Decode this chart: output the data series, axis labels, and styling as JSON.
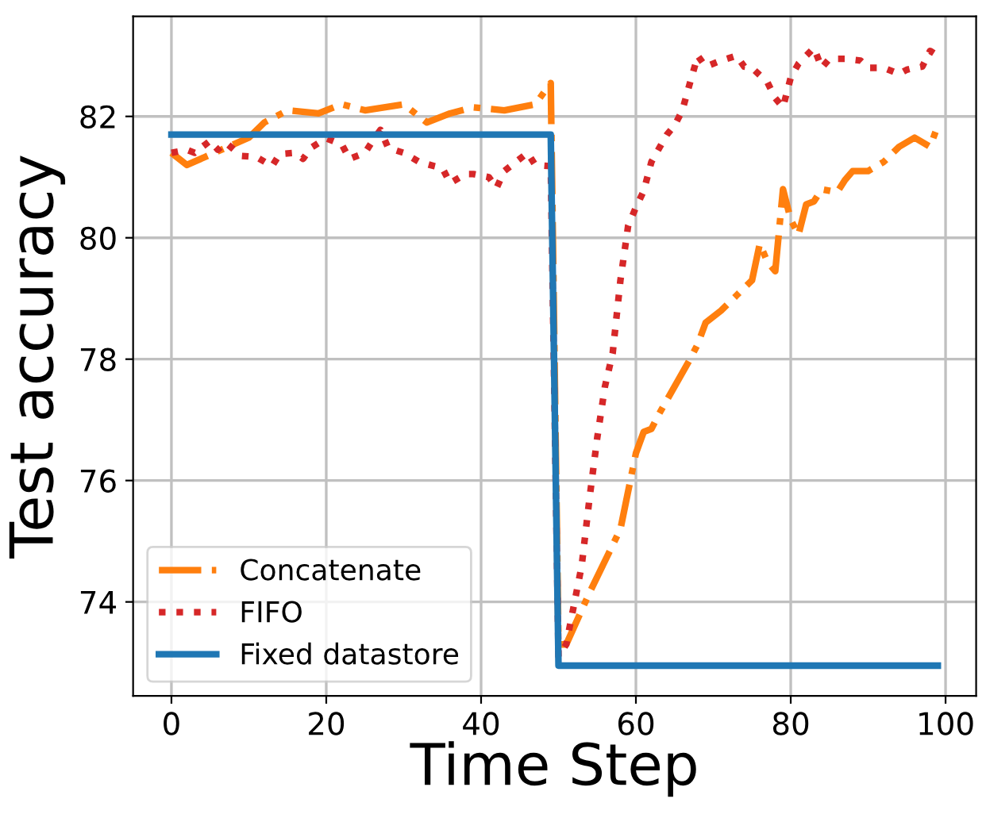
{
  "chart_data": {
    "type": "line",
    "xlabel": "Time Step",
    "ylabel": "Test accuracy",
    "xlim": [
      -4.95,
      103.95
    ],
    "xticks": [
      0,
      20,
      40,
      60,
      80,
      100
    ],
    "ylim": [
      72.45,
      83.65
    ],
    "yticks": [
      74,
      76,
      78,
      80,
      82
    ],
    "grid": true,
    "legend": "bottom left",
    "marker": "none",
    "series": [
      {
        "name": "Concatenate",
        "color": "#ff7f0e",
        "line_style": "dashdot",
        "x": [
          0,
          2,
          10,
          12,
          15,
          19,
          22,
          25,
          30,
          33,
          36,
          39,
          43,
          47,
          49,
          50,
          51,
          54,
          58,
          60,
          61,
          62,
          63,
          67,
          68,
          69,
          71,
          73,
          75,
          76,
          77,
          78,
          79,
          80,
          81,
          82,
          83,
          84,
          86,
          87,
          88,
          90,
          92,
          94,
          96,
          98,
          99
        ],
        "values": [
          81.4,
          81.2,
          81.65,
          81.9,
          82.1,
          82.05,
          82.2,
          82.1,
          82.2,
          81.9,
          82.05,
          82.15,
          82.1,
          82.2,
          82.55,
          73.3,
          73.3,
          74.15,
          75.2,
          76.45,
          76.8,
          76.85,
          77.1,
          78.0,
          78.25,
          78.6,
          78.8,
          79.05,
          79.3,
          79.9,
          79.6,
          79.45,
          80.8,
          80.3,
          80.05,
          80.55,
          80.6,
          80.8,
          80.75,
          80.95,
          81.1,
          81.1,
          81.25,
          81.5,
          81.65,
          81.5,
          81.85
        ]
      },
      {
        "name": "FIFO",
        "color": "#d62728",
        "line_style": "dotted",
        "x": [
          0,
          2,
          3,
          5,
          6,
          7,
          9,
          11,
          13,
          14,
          16,
          17,
          18,
          20,
          22,
          23,
          25,
          26,
          27,
          28,
          30,
          32,
          34,
          35,
          36,
          38,
          39,
          41,
          42,
          43,
          44,
          46,
          47,
          49,
          50,
          51,
          53,
          54,
          55,
          56,
          57,
          58,
          59,
          60,
          61,
          62,
          64,
          65,
          66,
          67,
          68,
          69,
          71,
          73,
          74,
          75,
          77,
          78,
          79,
          80,
          81,
          83,
          84,
          85,
          87,
          89,
          90,
          92,
          94,
          95,
          96,
          97,
          98,
          99
        ],
        "values": [
          81.4,
          81.45,
          81.4,
          81.6,
          81.45,
          81.57,
          81.35,
          81.33,
          81.18,
          81.38,
          81.4,
          81.3,
          81.48,
          81.64,
          81.54,
          81.3,
          81.4,
          81.6,
          81.78,
          81.48,
          81.4,
          81.25,
          81.18,
          81.15,
          80.9,
          81.05,
          81.05,
          81.0,
          80.82,
          81.1,
          81.2,
          81.4,
          81.2,
          81.18,
          73.1,
          73.3,
          74.6,
          75.7,
          76.7,
          77.55,
          78.1,
          79.3,
          80.2,
          80.5,
          80.77,
          81.25,
          81.7,
          81.85,
          82.1,
          82.56,
          83.0,
          82.82,
          82.92,
          83.0,
          82.82,
          82.8,
          82.56,
          82.3,
          82.15,
          82.64,
          82.87,
          83.13,
          82.8,
          82.95,
          82.95,
          82.92,
          82.8,
          82.8,
          82.7,
          82.77,
          82.8,
          82.82,
          83.08,
          83.0
        ]
      },
      {
        "name": "Fixed datastore",
        "color": "#1f77b4",
        "line_style": "solid",
        "x": [
          0,
          49,
          50,
          99
        ],
        "values": [
          81.7,
          81.7,
          72.95,
          72.95
        ]
      }
    ]
  }
}
